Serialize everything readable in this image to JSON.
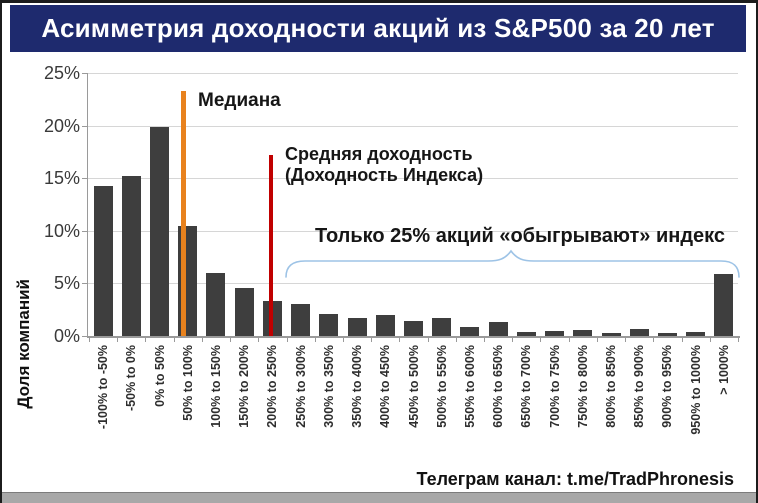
{
  "header": {
    "title": "Асимметрия доходности акций из S&P500 за 20 лет",
    "bg_color": "#1e2a6e"
  },
  "chart_data": {
    "type": "bar",
    "title": "Асимметрия доходности акций из S&P500 за 20 лет",
    "xlabel": "",
    "ylabel": "Доля компаний",
    "ylim": [
      0,
      25
    ],
    "yticks": [
      0,
      5,
      10,
      15,
      20,
      25
    ],
    "ytick_suffix": "%",
    "grid": true,
    "bar_color": "#3e3e3e",
    "categories": [
      "-100% to -50%",
      "-50% to 0%",
      "0% to 50%",
      "50% to 100%",
      "100% to 150%",
      "150% to 200%",
      "200% to 250%",
      "250% to 300%",
      "300% to 350%",
      "350% to 400%",
      "400% to 450%",
      "450% to 500%",
      "500% to 550%",
      "550% to 600%",
      "600% to 650%",
      "650% to 700%",
      "700% to 750%",
      "750% to 800%",
      "800% to 850%",
      "850% to 900%",
      "900% to 950%",
      "950% to 1000%",
      "> 1000%"
    ],
    "values": [
      14.3,
      15.2,
      19.9,
      10.5,
      6.0,
      4.6,
      3.3,
      3.0,
      2.1,
      1.7,
      2.0,
      1.4,
      1.7,
      0.9,
      1.3,
      0.4,
      0.5,
      0.6,
      0.3,
      0.7,
      0.3,
      0.4,
      5.9
    ],
    "annotations": {
      "median": {
        "label": "Медиана",
        "color": "#e8821e",
        "value_pct": 23.3
      },
      "mean": {
        "label_line1": "Средняя доходность",
        "label_line2": "(Доходность Индекса)",
        "color": "#c00000",
        "value_pct": 17.2
      },
      "brace_note": {
        "text": "Только 25% акций «обыгрывают» индекс",
        "brace_color": "#9dc3e6"
      }
    }
  },
  "footer": {
    "text": "Телеграм канал: t.me/TradPhronesis"
  }
}
